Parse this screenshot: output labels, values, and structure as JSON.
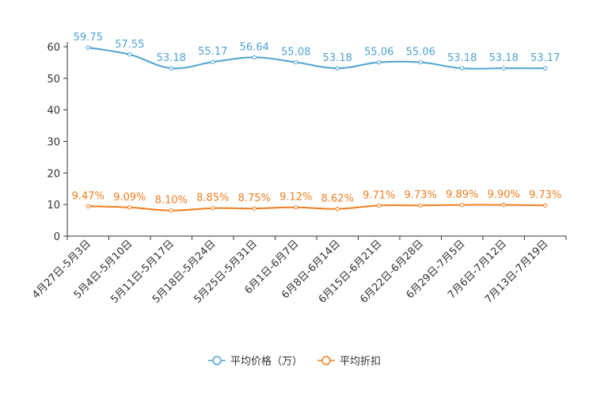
{
  "chart_data": {
    "type": "line",
    "categories": [
      "4月27日-5月3日",
      "5月4日-5月10日",
      "5月11日-5月17日",
      "5月18日-5月24日",
      "5月25日-5月31日",
      "6月1日-6月7日",
      "6月8日-6月14日",
      "6月15日-6月21日",
      "6月22日-6月28日",
      "6月29日-7月5日",
      "7月6日-7月12日",
      "7月13日-7月19日"
    ],
    "series": [
      {
        "name": "平均价格（万）",
        "color": "#4da3d1",
        "values": [
          59.75,
          57.55,
          53.18,
          55.17,
          56.64,
          55.08,
          53.18,
          55.06,
          55.06,
          53.18,
          53.18,
          53.17
        ],
        "labels": [
          "59.75",
          "57.55",
          "53.18",
          "55.17",
          "56.64",
          "55.08",
          "53.18",
          "55.06",
          "55.06",
          "53.18",
          "53.18",
          "53.17"
        ]
      },
      {
        "name": "平均折扣",
        "color": "#f07d1e",
        "values": [
          9.47,
          9.09,
          8.1,
          8.85,
          8.75,
          9.12,
          8.62,
          9.71,
          9.73,
          9.89,
          9.9,
          9.73
        ],
        "labels": [
          "9.47%",
          "9.09%",
          "8.10%",
          "8.85%",
          "8.75%",
          "9.12%",
          "8.62%",
          "9.71%",
          "9.73%",
          "9.89%",
          "9.90%",
          "9.73%"
        ]
      }
    ],
    "yticks": [
      "0",
      "10",
      "20",
      "30",
      "40",
      "50",
      "60"
    ],
    "ylim": [
      0,
      60
    ],
    "legend_position": "bottom-center"
  }
}
